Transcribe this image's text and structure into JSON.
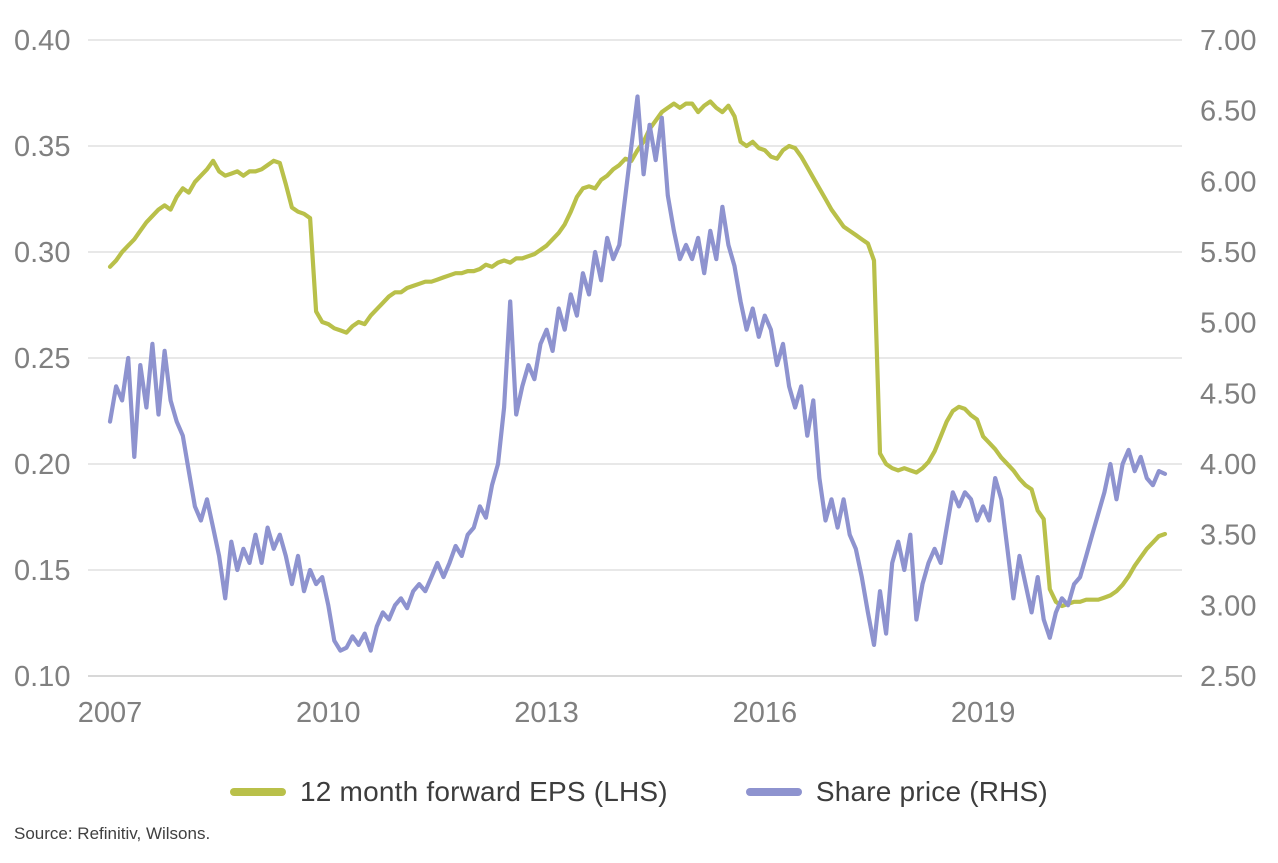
{
  "source": "Source: Refinitiv, Wilsons.",
  "chart_data": {
    "type": "line",
    "title": "",
    "xlabel": "",
    "ylabel_left": "",
    "ylabel_right": "",
    "grid": "horizontal",
    "legend_position": "bottom-center",
    "x_start_year": 2007,
    "points_per_year": 12,
    "x_ticks": [
      2007,
      2010,
      2013,
      2016,
      2019
    ],
    "left_axis": {
      "min": 0.1,
      "max": 0.4,
      "ticks": [
        "0.40",
        "0.35",
        "0.30",
        "0.25",
        "0.20",
        "0.15",
        "0.10"
      ]
    },
    "right_axis": {
      "min": 2.5,
      "max": 7.0,
      "ticks": [
        "7.00",
        "6.50",
        "6.00",
        "5.50",
        "5.00",
        "4.50",
        "4.00",
        "3.50",
        "3.00",
        "2.50"
      ]
    },
    "colors": {
      "gridline": "#d9d9d9",
      "axis_line": "#c0c0c0"
    },
    "series": [
      {
        "name": "12 month forward EPS (LHS)",
        "axis": "left",
        "color": "#b9c04a",
        "values": [
          0.293,
          0.296,
          0.3,
          0.303,
          0.306,
          0.31,
          0.314,
          0.317,
          0.32,
          0.322,
          0.32,
          0.326,
          0.33,
          0.328,
          0.333,
          0.336,
          0.339,
          0.343,
          0.338,
          0.336,
          0.337,
          0.338,
          0.336,
          0.338,
          0.338,
          0.339,
          0.341,
          0.343,
          0.342,
          0.332,
          0.321,
          0.319,
          0.318,
          0.316,
          0.272,
          0.267,
          0.266,
          0.264,
          0.263,
          0.262,
          0.265,
          0.267,
          0.266,
          0.27,
          0.273,
          0.276,
          0.279,
          0.281,
          0.281,
          0.283,
          0.284,
          0.285,
          0.286,
          0.286,
          0.287,
          0.288,
          0.289,
          0.29,
          0.29,
          0.291,
          0.291,
          0.292,
          0.294,
          0.293,
          0.295,
          0.296,
          0.295,
          0.297,
          0.297,
          0.298,
          0.299,
          0.301,
          0.303,
          0.306,
          0.309,
          0.313,
          0.319,
          0.326,
          0.33,
          0.331,
          0.33,
          0.334,
          0.336,
          0.339,
          0.341,
          0.344,
          0.343,
          0.348,
          0.352,
          0.358,
          0.362,
          0.366,
          0.368,
          0.37,
          0.368,
          0.37,
          0.37,
          0.366,
          0.369,
          0.371,
          0.368,
          0.366,
          0.369,
          0.364,
          0.352,
          0.35,
          0.352,
          0.349,
          0.348,
          0.345,
          0.344,
          0.348,
          0.35,
          0.349,
          0.345,
          0.34,
          0.335,
          0.33,
          0.325,
          0.32,
          0.316,
          0.312,
          0.31,
          0.308,
          0.306,
          0.304,
          0.296,
          0.205,
          0.2,
          0.198,
          0.197,
          0.198,
          0.197,
          0.196,
          0.198,
          0.201,
          0.206,
          0.213,
          0.22,
          0.225,
          0.227,
          0.226,
          0.223,
          0.221,
          0.213,
          0.21,
          0.207,
          0.203,
          0.2,
          0.197,
          0.193,
          0.19,
          0.188,
          0.178,
          0.174,
          0.141,
          0.135,
          0.133,
          0.134,
          0.135,
          0.135,
          0.136,
          0.136,
          0.136,
          0.137,
          0.138,
          0.14,
          0.143,
          0.147,
          0.152,
          0.156,
          0.16,
          0.163,
          0.166,
          0.167
        ]
      },
      {
        "name": "Share price (RHS)",
        "axis": "right",
        "color": "#8e93cf",
        "values": [
          4.3,
          4.55,
          4.45,
          4.75,
          4.05,
          4.7,
          4.4,
          4.85,
          4.35,
          4.8,
          4.45,
          4.3,
          4.2,
          3.95,
          3.7,
          3.6,
          3.75,
          3.55,
          3.35,
          3.05,
          3.45,
          3.25,
          3.4,
          3.3,
          3.5,
          3.3,
          3.55,
          3.4,
          3.5,
          3.35,
          3.15,
          3.35,
          3.1,
          3.25,
          3.15,
          3.2,
          3.0,
          2.75,
          2.68,
          2.7,
          2.78,
          2.72,
          2.8,
          2.68,
          2.85,
          2.95,
          2.9,
          3.0,
          3.05,
          2.98,
          3.1,
          3.15,
          3.1,
          3.2,
          3.3,
          3.2,
          3.3,
          3.42,
          3.35,
          3.5,
          3.55,
          3.7,
          3.62,
          3.85,
          4.0,
          4.4,
          5.15,
          4.35,
          4.55,
          4.7,
          4.6,
          4.85,
          4.95,
          4.8,
          5.1,
          4.95,
          5.2,
          5.05,
          5.35,
          5.2,
          5.5,
          5.3,
          5.6,
          5.45,
          5.55,
          5.9,
          6.25,
          6.6,
          6.05,
          6.4,
          6.15,
          6.45,
          5.9,
          5.65,
          5.45,
          5.55,
          5.45,
          5.6,
          5.35,
          5.65,
          5.45,
          5.82,
          5.55,
          5.4,
          5.15,
          4.95,
          5.1,
          4.9,
          5.05,
          4.95,
          4.7,
          4.85,
          4.55,
          4.4,
          4.55,
          4.2,
          4.45,
          3.9,
          3.6,
          3.75,
          3.55,
          3.75,
          3.5,
          3.4,
          3.2,
          2.95,
          2.72,
          3.1,
          2.8,
          3.3,
          3.45,
          3.25,
          3.5,
          2.9,
          3.15,
          3.3,
          3.4,
          3.3,
          3.55,
          3.8,
          3.7,
          3.8,
          3.75,
          3.6,
          3.7,
          3.6,
          3.9,
          3.75,
          3.4,
          3.05,
          3.35,
          3.15,
          2.95,
          3.2,
          2.9,
          2.77,
          2.95,
          3.05,
          3.0,
          3.15,
          3.2,
          3.35,
          3.5,
          3.65,
          3.8,
          4.0,
          3.75,
          4.0,
          4.1,
          3.95,
          4.05,
          3.9,
          3.85,
          3.95,
          3.93
        ]
      }
    ]
  }
}
